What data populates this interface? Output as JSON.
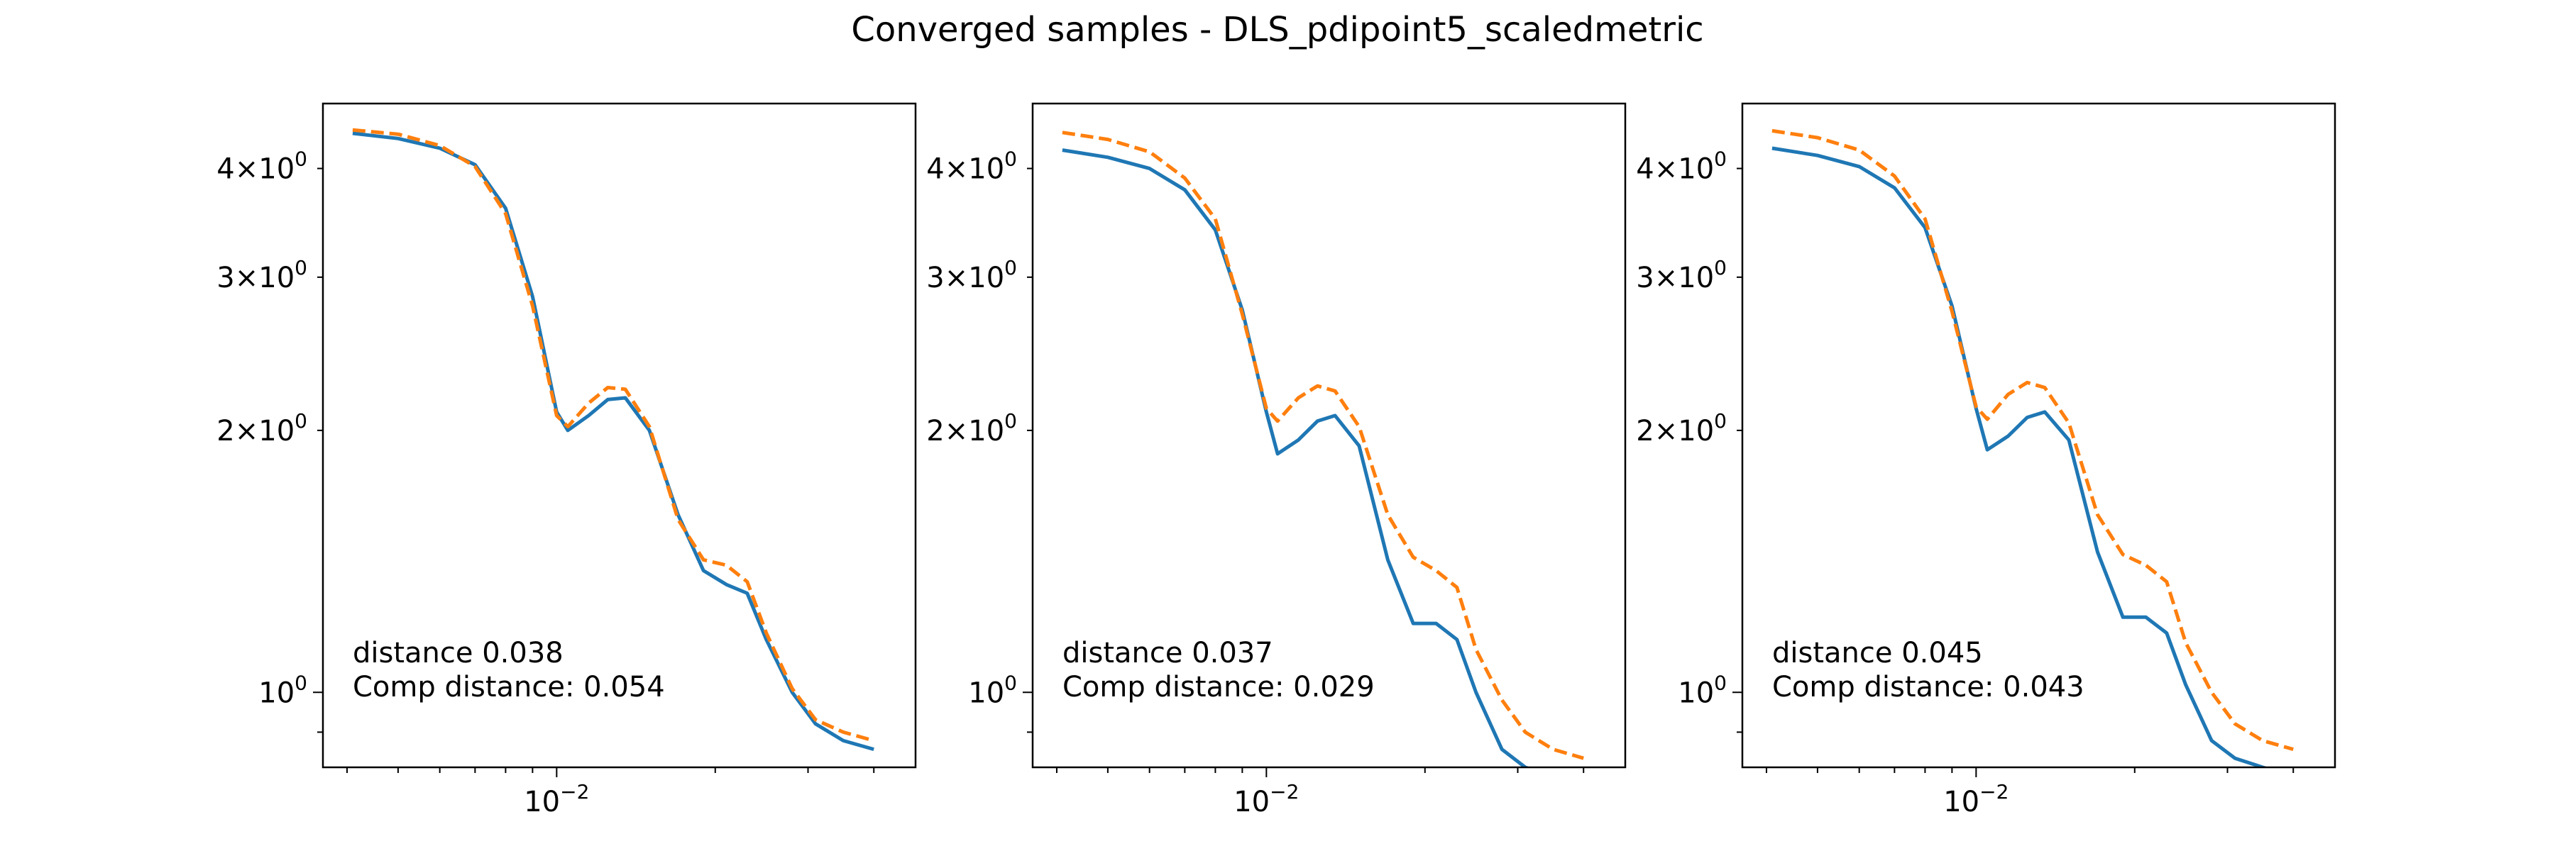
{
  "figure": {
    "title": "Converged samples - DLS_pdipoint5_scaledmetric"
  },
  "colors": {
    "measured": "#1f77b4",
    "fitted": "#ff7f0e",
    "axes": "#000000"
  },
  "chart_data": [
    {
      "type": "line",
      "xscale": "log",
      "yscale": "log",
      "xlim": [
        0.0036,
        0.048
      ],
      "ylim": [
        0.82,
        4.75
      ],
      "xticks": [
        {
          "value": 0.01,
          "base": "10",
          "exp": "−2"
        }
      ],
      "yticks": [
        {
          "value": 4,
          "mant": "4",
          "base": "10",
          "exp": "0"
        },
        {
          "value": 3,
          "mant": "3",
          "base": "10",
          "exp": "0"
        },
        {
          "value": 2,
          "mant": "2",
          "base": "10",
          "exp": "0"
        },
        {
          "value": 1,
          "mant": "",
          "base": "10",
          "exp": "0"
        }
      ],
      "annotation": [
        "distance 0.038",
        "Comp distance: 0.054"
      ],
      "series": [
        {
          "style": "solid",
          "color": "#1f77b4",
          "points": [
            [
              0.0041,
              4.39
            ],
            [
              0.005,
              4.33
            ],
            [
              0.006,
              4.22
            ],
            [
              0.007,
              4.04
            ],
            [
              0.008,
              3.6
            ],
            [
              0.009,
              2.85
            ],
            [
              0.01,
              2.1
            ],
            [
              0.0105,
              2.0
            ],
            [
              0.0115,
              2.08
            ],
            [
              0.0125,
              2.17
            ],
            [
              0.0135,
              2.18
            ],
            [
              0.015,
              2.0
            ],
            [
              0.017,
              1.6
            ],
            [
              0.019,
              1.38
            ],
            [
              0.021,
              1.33
            ],
            [
              0.023,
              1.3
            ],
            [
              0.025,
              1.15
            ],
            [
              0.028,
              1.0
            ],
            [
              0.031,
              0.92
            ],
            [
              0.035,
              0.88
            ],
            [
              0.04,
              0.86
            ]
          ]
        },
        {
          "style": "dashed",
          "color": "#ff7f0e",
          "points": [
            [
              0.0041,
              4.43
            ],
            [
              0.005,
              4.38
            ],
            [
              0.006,
              4.25
            ],
            [
              0.007,
              4.02
            ],
            [
              0.008,
              3.55
            ],
            [
              0.009,
              2.78
            ],
            [
              0.01,
              2.08
            ],
            [
              0.0105,
              2.02
            ],
            [
              0.0115,
              2.15
            ],
            [
              0.0125,
              2.24
            ],
            [
              0.0135,
              2.23
            ],
            [
              0.015,
              2.02
            ],
            [
              0.017,
              1.58
            ],
            [
              0.019,
              1.42
            ],
            [
              0.021,
              1.4
            ],
            [
              0.023,
              1.34
            ],
            [
              0.025,
              1.17
            ],
            [
              0.028,
              1.01
            ],
            [
              0.031,
              0.93
            ],
            [
              0.035,
              0.9
            ],
            [
              0.04,
              0.88
            ]
          ]
        }
      ]
    },
    {
      "type": "line",
      "xscale": "log",
      "yscale": "log",
      "xlim": [
        0.0036,
        0.048
      ],
      "ylim": [
        0.82,
        4.75
      ],
      "xticks": [
        {
          "value": 0.01,
          "base": "10",
          "exp": "−2"
        }
      ],
      "yticks": [
        {
          "value": 4,
          "mant": "4",
          "base": "10",
          "exp": "0"
        },
        {
          "value": 3,
          "mant": "3",
          "base": "10",
          "exp": "0"
        },
        {
          "value": 2,
          "mant": "2",
          "base": "10",
          "exp": "0"
        },
        {
          "value": 1,
          "mant": "",
          "base": "10",
          "exp": "0"
        }
      ],
      "annotation": [
        "distance 0.037",
        "Comp distance: 0.029"
      ],
      "series": [
        {
          "style": "solid",
          "color": "#1f77b4",
          "points": [
            [
              0.0041,
              4.2
            ],
            [
              0.005,
              4.12
            ],
            [
              0.006,
              4.0
            ],
            [
              0.007,
              3.78
            ],
            [
              0.008,
              3.4
            ],
            [
              0.009,
              2.75
            ],
            [
              0.01,
              2.1
            ],
            [
              0.0105,
              1.88
            ],
            [
              0.0115,
              1.95
            ],
            [
              0.0125,
              2.05
            ],
            [
              0.0135,
              2.08
            ],
            [
              0.015,
              1.92
            ],
            [
              0.017,
              1.42
            ],
            [
              0.019,
              1.2
            ],
            [
              0.021,
              1.2
            ],
            [
              0.023,
              1.15
            ],
            [
              0.025,
              1.0
            ],
            [
              0.028,
              0.86
            ],
            [
              0.031,
              0.82
            ],
            [
              0.035,
              0.8
            ],
            [
              0.04,
              0.78
            ]
          ]
        },
        {
          "style": "dashed",
          "color": "#ff7f0e",
          "points": [
            [
              0.0041,
              4.4
            ],
            [
              0.005,
              4.32
            ],
            [
              0.006,
              4.18
            ],
            [
              0.007,
              3.9
            ],
            [
              0.008,
              3.5
            ],
            [
              0.009,
              2.72
            ],
            [
              0.01,
              2.12
            ],
            [
              0.0105,
              2.05
            ],
            [
              0.0115,
              2.18
            ],
            [
              0.0125,
              2.25
            ],
            [
              0.0135,
              2.22
            ],
            [
              0.015,
              2.02
            ],
            [
              0.017,
              1.6
            ],
            [
              0.019,
              1.43
            ],
            [
              0.021,
              1.38
            ],
            [
              0.023,
              1.32
            ],
            [
              0.025,
              1.12
            ],
            [
              0.028,
              0.98
            ],
            [
              0.031,
              0.9
            ],
            [
              0.035,
              0.86
            ],
            [
              0.04,
              0.84
            ]
          ]
        }
      ]
    },
    {
      "type": "line",
      "xscale": "log",
      "yscale": "log",
      "xlim": [
        0.0036,
        0.048
      ],
      "ylim": [
        0.82,
        4.75
      ],
      "xticks": [
        {
          "value": 0.01,
          "base": "10",
          "exp": "−2"
        }
      ],
      "yticks": [
        {
          "value": 4,
          "mant": "4",
          "base": "10",
          "exp": "0"
        },
        {
          "value": 3,
          "mant": "3",
          "base": "10",
          "exp": "0"
        },
        {
          "value": 2,
          "mant": "2",
          "base": "10",
          "exp": "0"
        },
        {
          "value": 1,
          "mant": "",
          "base": "10",
          "exp": "0"
        }
      ],
      "annotation": [
        "distance 0.045",
        "Comp distance: 0.043"
      ],
      "series": [
        {
          "style": "solid",
          "color": "#1f77b4",
          "points": [
            [
              0.0041,
              4.22
            ],
            [
              0.005,
              4.14
            ],
            [
              0.006,
              4.02
            ],
            [
              0.007,
              3.8
            ],
            [
              0.008,
              3.42
            ],
            [
              0.009,
              2.78
            ],
            [
              0.01,
              2.12
            ],
            [
              0.0105,
              1.9
            ],
            [
              0.0115,
              1.97
            ],
            [
              0.0125,
              2.07
            ],
            [
              0.0135,
              2.1
            ],
            [
              0.015,
              1.95
            ],
            [
              0.017,
              1.45
            ],
            [
              0.019,
              1.22
            ],
            [
              0.021,
              1.22
            ],
            [
              0.023,
              1.17
            ],
            [
              0.025,
              1.02
            ],
            [
              0.028,
              0.88
            ],
            [
              0.031,
              0.84
            ],
            [
              0.035,
              0.82
            ],
            [
              0.04,
              0.8
            ]
          ]
        },
        {
          "style": "dashed",
          "color": "#ff7f0e",
          "points": [
            [
              0.0041,
              4.42
            ],
            [
              0.005,
              4.34
            ],
            [
              0.006,
              4.2
            ],
            [
              0.007,
              3.92
            ],
            [
              0.008,
              3.5
            ],
            [
              0.009,
              2.74
            ],
            [
              0.01,
              2.13
            ],
            [
              0.0105,
              2.06
            ],
            [
              0.0115,
              2.2
            ],
            [
              0.0125,
              2.27
            ],
            [
              0.0135,
              2.24
            ],
            [
              0.015,
              2.04
            ],
            [
              0.017,
              1.6
            ],
            [
              0.019,
              1.44
            ],
            [
              0.021,
              1.4
            ],
            [
              0.023,
              1.34
            ],
            [
              0.025,
              1.14
            ],
            [
              0.028,
              1.0
            ],
            [
              0.031,
              0.92
            ],
            [
              0.035,
              0.88
            ],
            [
              0.04,
              0.86
            ]
          ]
        }
      ]
    }
  ]
}
